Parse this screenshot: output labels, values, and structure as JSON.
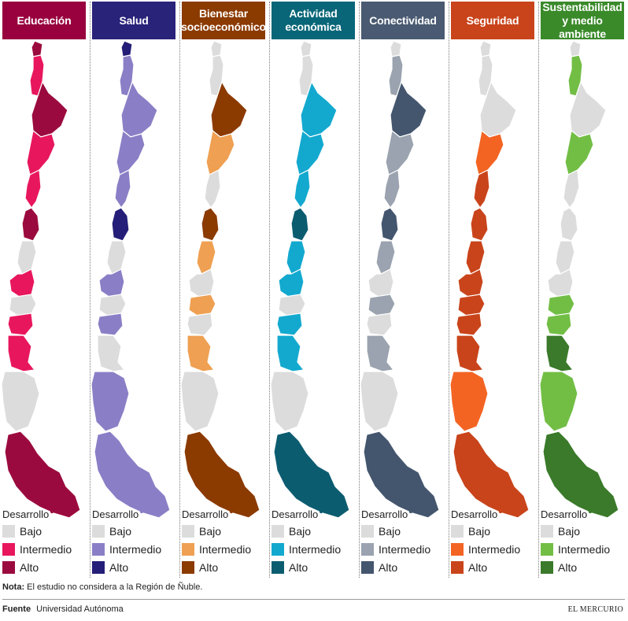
{
  "panels": [
    {
      "title": "Educación",
      "colors": {
        "bajo": "#dcdcdc",
        "intermedio": "#e8175d",
        "alto": "#9b0a3e"
      },
      "regions": [
        "alto",
        "intermedio",
        "alto",
        "intermedio",
        "intermedio",
        "alto",
        "bajo",
        "intermedio",
        "bajo",
        "intermedio",
        "intermedio",
        "bajo",
        "alto"
      ]
    },
    {
      "title": "Salud",
      "colors": {
        "bajo": "#dcdcdc",
        "intermedio": "#8a7fc6",
        "alto": "#241e78"
      },
      "regions": [
        "alto",
        "intermedio",
        "intermedio",
        "intermedio",
        "intermedio",
        "alto",
        "bajo",
        "intermedio",
        "bajo",
        "intermedio",
        "bajo",
        "intermedio",
        "intermedio"
      ]
    },
    {
      "title": "Bienestar socioeconómico",
      "colors": {
        "bajo": "#dcdcdc",
        "intermedio": "#efa052",
        "alto": "#8b3a00"
      },
      "regions": [
        "bajo",
        "bajo",
        "alto",
        "intermedio",
        "bajo",
        "alto",
        "intermedio",
        "bajo",
        "intermedio",
        "bajo",
        "intermedio",
        "bajo",
        "alto"
      ]
    },
    {
      "title": "Actividad económica",
      "colors": {
        "bajo": "#dcdcdc",
        "intermedio": "#13a9cf",
        "alto": "#0c5c70"
      },
      "regions": [
        "bajo",
        "bajo",
        "intermedio",
        "intermedio",
        "intermedio",
        "alto",
        "intermedio",
        "intermedio",
        "bajo",
        "intermedio",
        "intermedio",
        "bajo",
        "alto"
      ]
    },
    {
      "title": "Conectividad",
      "colors": {
        "bajo": "#dcdcdc",
        "intermedio": "#9aa3af",
        "alto": "#44566e"
      },
      "regions": [
        "bajo",
        "intermedio",
        "alto",
        "intermedio",
        "intermedio",
        "alto",
        "intermedio",
        "bajo",
        "intermedio",
        "bajo",
        "intermedio",
        "bajo",
        "alto"
      ]
    },
    {
      "title": "Seguridad",
      "colors": {
        "bajo": "#dcdcdc",
        "intermedio": "#f36423",
        "alto": "#c9441b"
      },
      "regions": [
        "bajo",
        "bajo",
        "bajo",
        "intermedio",
        "alto",
        "alto",
        "alto",
        "alto",
        "alto",
        "alto",
        "alto",
        "intermedio",
        "alto"
      ]
    },
    {
      "title": "Sustentabilidad y medio ambiente",
      "colors": {
        "bajo": "#dcdcdc",
        "intermedio": "#72be45",
        "alto": "#3a7a2a"
      },
      "regions": [
        "bajo",
        "intermedio",
        "bajo",
        "intermedio",
        "bajo",
        "bajo",
        "bajo",
        "bajo",
        "intermedio",
        "intermedio",
        "alto",
        "intermedio",
        "alto"
      ]
    }
  ],
  "legend": {
    "title": "Desarrollo",
    "bajo": "Bajo",
    "intermedio": "Intermedio",
    "alto": "Alto"
  },
  "note": {
    "label": "Nota:",
    "text": "El estudio no considera a la Región de Ñuble."
  },
  "source": {
    "label": "Fuente",
    "text": "Universidad Autónoma"
  },
  "brand": "EL MERCURIO"
}
